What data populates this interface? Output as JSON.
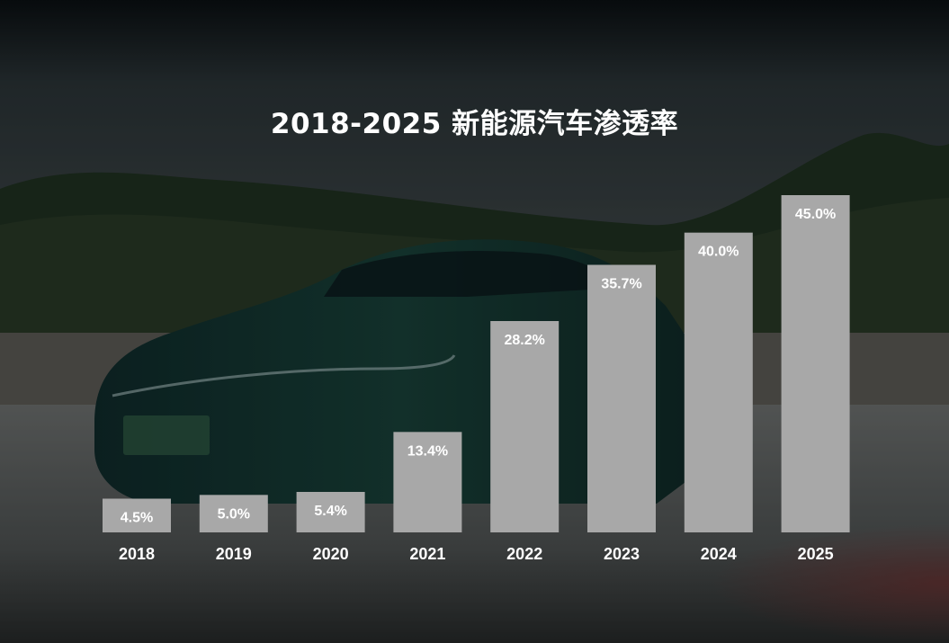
{
  "chart_data": {
    "type": "bar",
    "title": "2018-2025 新能源汽车渗透率",
    "categories": [
      "2018",
      "2019",
      "2020",
      "2021",
      "2022",
      "2023",
      "2024",
      "2025"
    ],
    "values": [
      4.5,
      5.0,
      5.4,
      13.4,
      28.2,
      35.7,
      40.0,
      45.0
    ],
    "value_labels": [
      "4.5%",
      "5.0%",
      "5.4%",
      "13.4%",
      "28.2%",
      "35.7%",
      "40.0%",
      "45.0%"
    ],
    "xlabel": "",
    "ylabel": "",
    "ylim": [
      0,
      45
    ],
    "grid": false,
    "legend": "none",
    "bar_color": "#a8a8a8"
  },
  "background": {
    "description_icon": "car-photo-background"
  }
}
